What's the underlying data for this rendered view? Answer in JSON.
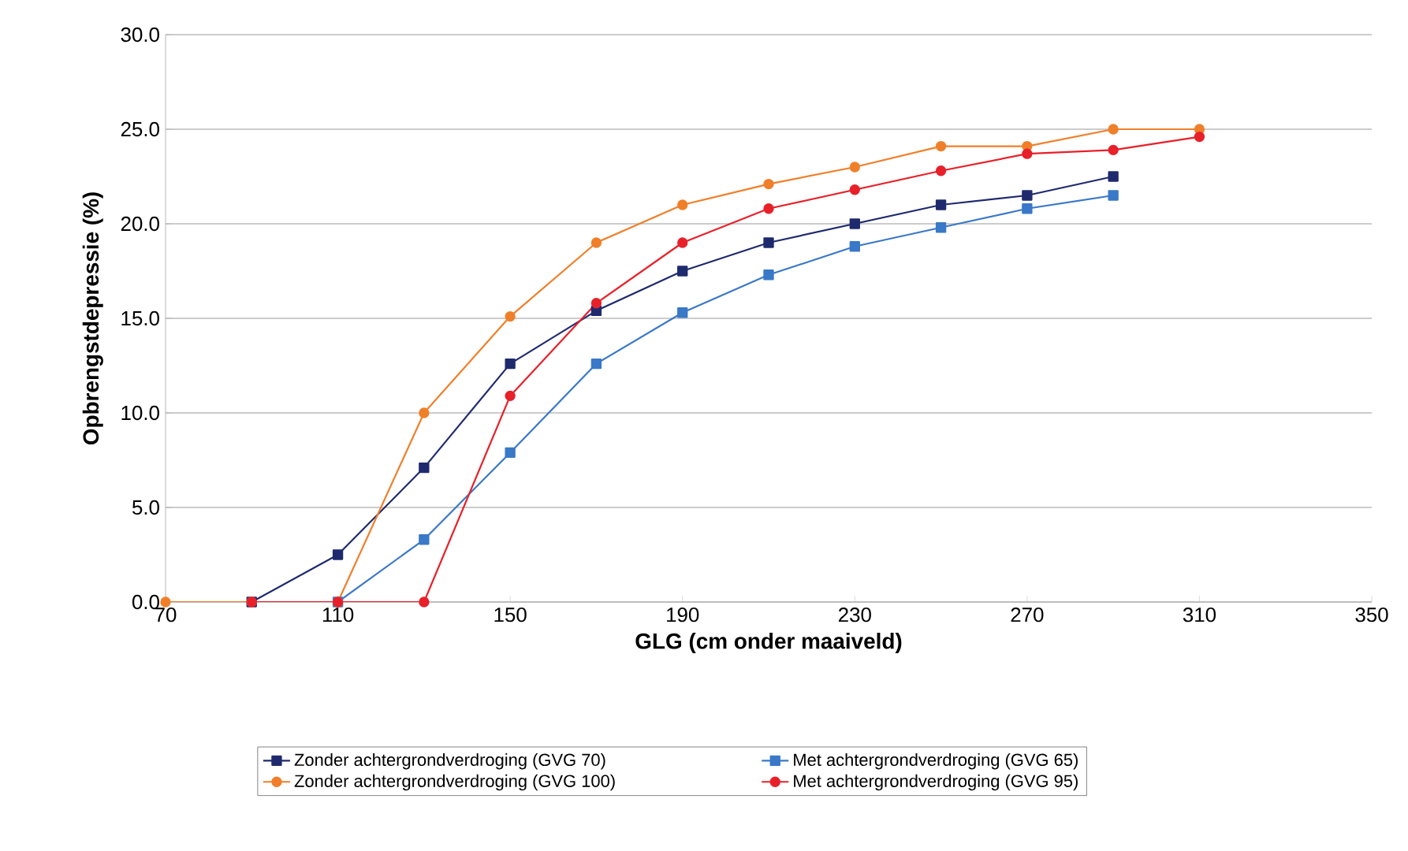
{
  "chart_data": {
    "type": "line",
    "xlabel": "GLG (cm onder maaiveld)",
    "ylabel": "Opbrengstdepressie (%)",
    "xlim": [
      70,
      350
    ],
    "xticks": [
      70,
      110,
      150,
      190,
      230,
      270,
      310,
      350
    ],
    "ylim": [
      0,
      30
    ],
    "yticks": [
      {
        "value": 0,
        "label": "0.0"
      },
      {
        "value": 5,
        "label": "5.0"
      },
      {
        "value": 10,
        "label": "10.0"
      },
      {
        "value": 15,
        "label": "15.0"
      },
      {
        "value": 20,
        "label": "20.0"
      },
      {
        "value": 25,
        "label": "25.0"
      },
      {
        "value": 30,
        "label": "30.0"
      }
    ],
    "grid": "y",
    "legend": "bottom",
    "series": [
      {
        "name": "Zonder achtergrondverdroging (GVG 70)",
        "color": "#1f2a6e",
        "marker": "square",
        "x": [
          90,
          110,
          130,
          150,
          170,
          190,
          210,
          230,
          250,
          270,
          290
        ],
        "values": [
          0,
          2.5,
          7.1,
          12.6,
          15.4,
          17.5,
          19.0,
          20.0,
          21.0,
          21.5,
          22.5
        ]
      },
      {
        "name": "Met achtergrondverdroging (GVG 65)",
        "color": "#3a78c8",
        "marker": "square",
        "x": [
          110,
          130,
          150,
          170,
          190,
          210,
          230,
          250,
          270,
          290
        ],
        "values": [
          0,
          3.3,
          7.9,
          12.6,
          15.3,
          17.3,
          18.8,
          19.8,
          20.8,
          21.5
        ]
      },
      {
        "name": "Zonder achtergrondverdroging (GVG 100)",
        "color": "#f07f2a",
        "marker": "circle",
        "x": [
          70,
          90,
          110,
          130,
          150,
          170,
          190,
          210,
          230,
          250,
          270,
          290,
          310
        ],
        "values": [
          0,
          0,
          0,
          10.0,
          15.1,
          19.0,
          21.0,
          22.1,
          23.0,
          24.1,
          24.1,
          25.0,
          25.0
        ]
      },
      {
        "name": "Met achtergrondverdroging (GVG 95)",
        "color": "#e8202a",
        "marker": "circle",
        "x": [
          90,
          110,
          130,
          150,
          170,
          190,
          210,
          230,
          250,
          270,
          290,
          310
        ],
        "values": [
          0,
          0,
          0,
          10.9,
          15.8,
          19.0,
          20.8,
          21.8,
          22.8,
          23.7,
          23.9,
          24.6
        ]
      }
    ]
  }
}
